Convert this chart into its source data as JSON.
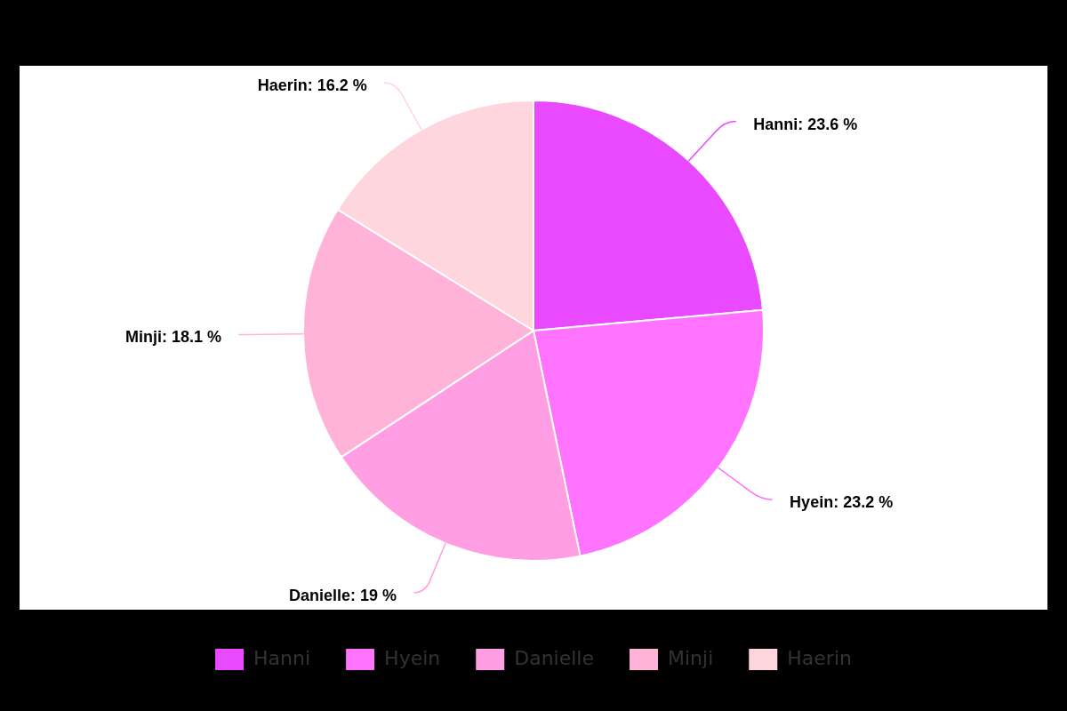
{
  "chart_data": {
    "type": "pie",
    "categories": [
      "Hanni",
      "Hyein",
      "Danielle",
      "Minji",
      "Haerin"
    ],
    "values": [
      23.6,
      23.2,
      19,
      18.1,
      16.2
    ],
    "colors": [
      "#e94aff",
      "#ff73ff",
      "#ff9ee3",
      "#ffb3d9",
      "#ffd6de"
    ],
    "value_labels": [
      "Hanni: 23.6 %",
      "Hyein: 23.2 %",
      "Danielle: 19 %",
      "Minji: 18.1 %",
      "Haerin: 16.2 %"
    ],
    "legend": "bottom"
  }
}
